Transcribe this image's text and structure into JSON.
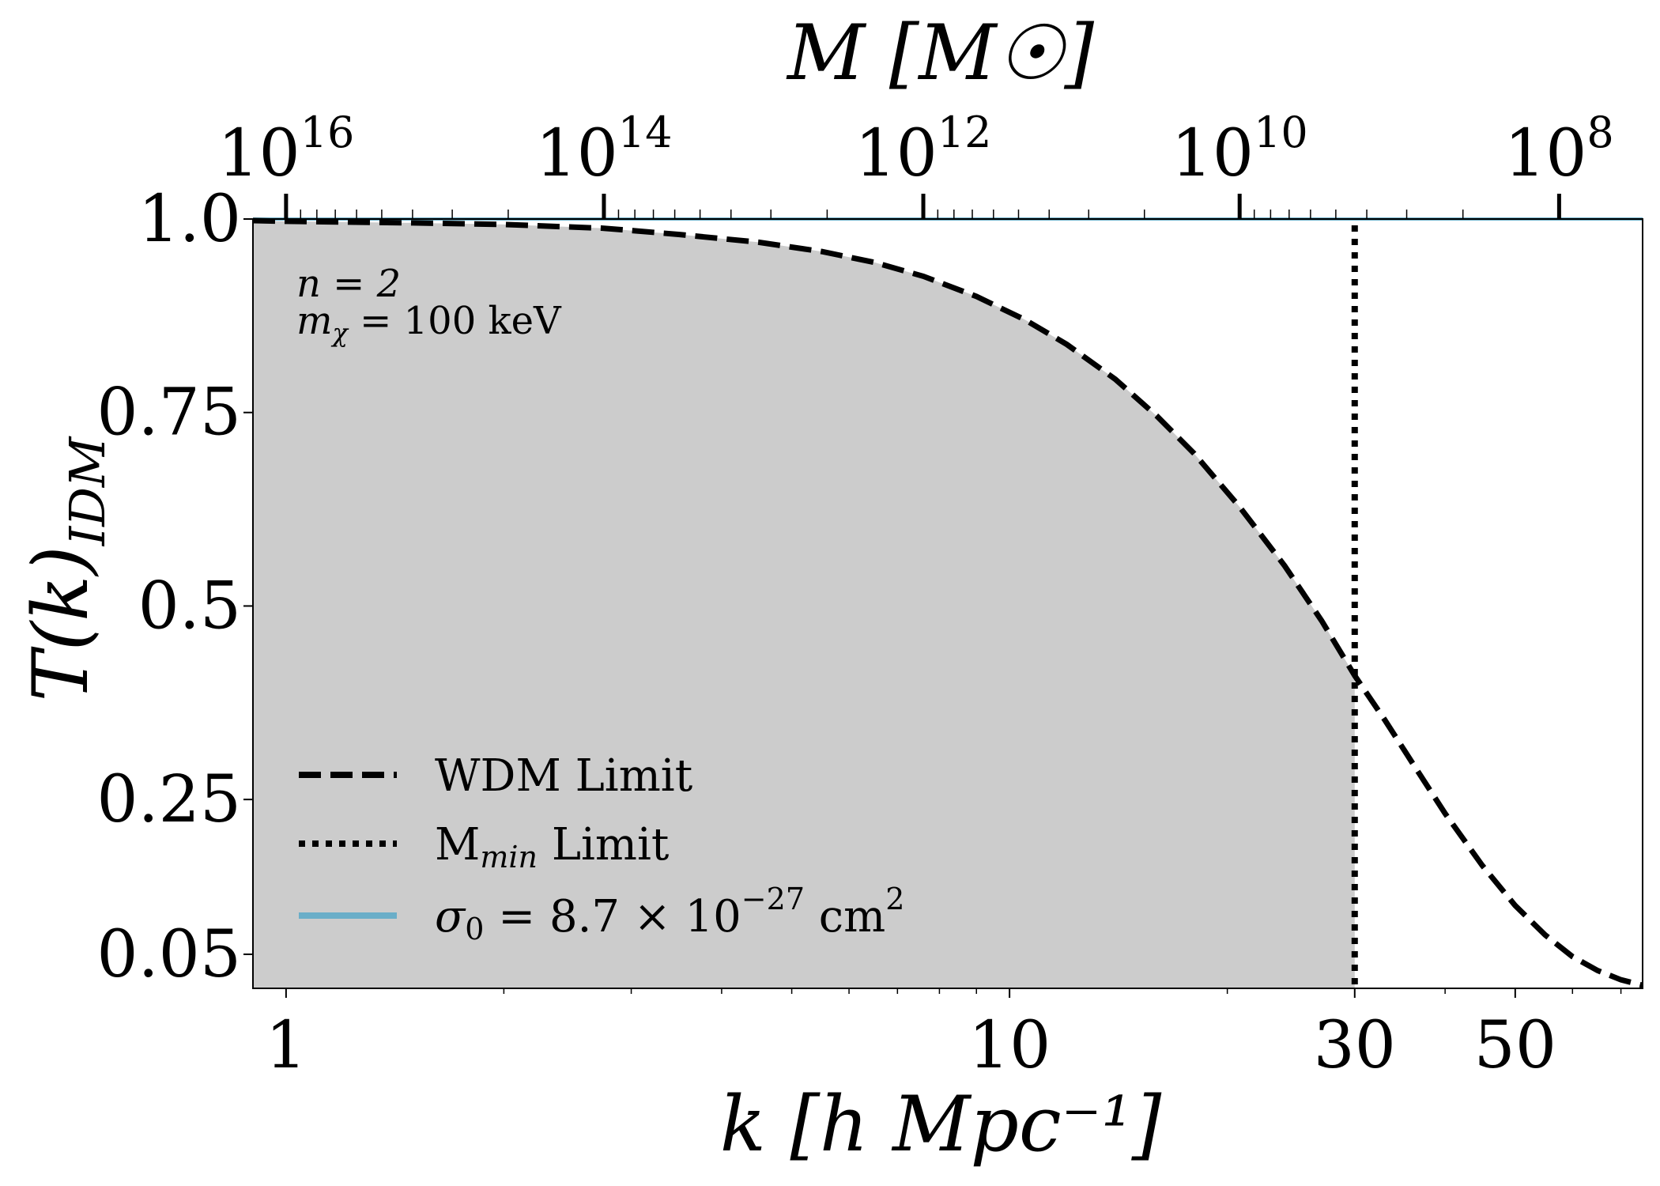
{
  "chart_data": {
    "type": "line",
    "x_scale": "log",
    "xlim": [
      0.9,
      75
    ],
    "ylim": [
      0.006,
      1.0
    ],
    "xlabel": "k [h Mpc⁻¹]",
    "ylabel": "T(k)",
    "ylabel_sub": "IDM",
    "top_axis_label": "M [M☉]",
    "x_ticks": [
      {
        "value": 1,
        "label": "1"
      },
      {
        "value": 10,
        "label": "10"
      },
      {
        "value": 30,
        "label": "30"
      },
      {
        "value": 50,
        "label": "50"
      }
    ],
    "y_ticks": [
      {
        "value": 1.0,
        "label": "1.0"
      },
      {
        "value": 0.75,
        "label": "0.75"
      },
      {
        "value": 0.5,
        "label": "0.5"
      },
      {
        "value": 0.25,
        "label": "0.25"
      },
      {
        "value": 0.05,
        "label": "0.05"
      }
    ],
    "top_ticks": [
      {
        "k": 1.0,
        "base": "10",
        "exp": "16"
      },
      {
        "k": 2.75,
        "base": "10",
        "exp": "14"
      },
      {
        "k": 7.6,
        "base": "10",
        "exp": "12"
      },
      {
        "k": 20.8,
        "base": "10",
        "exp": "10"
      },
      {
        "k": 57.5,
        "base": "10",
        "exp": "8"
      }
    ],
    "series": [
      {
        "name": "WDM Limit",
        "style": "dashed",
        "color": "#000000",
        "x": [
          0.9,
          1.0,
          1.5,
          2.0,
          2.75,
          3.5,
          4.5,
          5.5,
          6.5,
          7.6,
          9.0,
          10.5,
          12.0,
          14.0,
          16.0,
          18.0,
          20.8,
          24.0,
          27.0,
          30.0,
          33.0,
          36.0,
          40.0,
          45.0,
          50.0,
          55.0,
          60.0,
          65.0,
          70.0,
          75.0
        ],
        "y": [
          0.998,
          0.997,
          0.995,
          0.993,
          0.988,
          0.98,
          0.97,
          0.958,
          0.944,
          0.926,
          0.9,
          0.87,
          0.838,
          0.793,
          0.745,
          0.697,
          0.628,
          0.552,
          0.481,
          0.41,
          0.353,
          0.298,
          0.232,
          0.165,
          0.113,
          0.075,
          0.047,
          0.029,
          0.017,
          0.01
        ]
      },
      {
        "name": "M_min Limit",
        "legend_main": "M",
        "legend_sub": "min",
        "legend_rest": " Limit",
        "style": "dotted",
        "color": "#000000",
        "x_const": 30
      },
      {
        "name": "σ₀ = 8.7 × 10⁻²⁷ cm²",
        "legend_main": "σ",
        "legend_sub": "0",
        "legend_mid": " = 8.7 × 10",
        "legend_exp": "−27",
        "legend_unit": " cm",
        "legend_exp2": "2",
        "style": "solid",
        "color": "#6aaec8",
        "y_const": 1.0
      }
    ],
    "shaded_region": {
      "color": "#cccccc",
      "x_max": 30,
      "bound_series": "WDM Limit"
    },
    "annotations": [
      {
        "main": "n = 2"
      },
      {
        "main": "m",
        "sub": "χ",
        "rest": " = 100 keV"
      }
    ],
    "legend_position": "lower-left"
  }
}
